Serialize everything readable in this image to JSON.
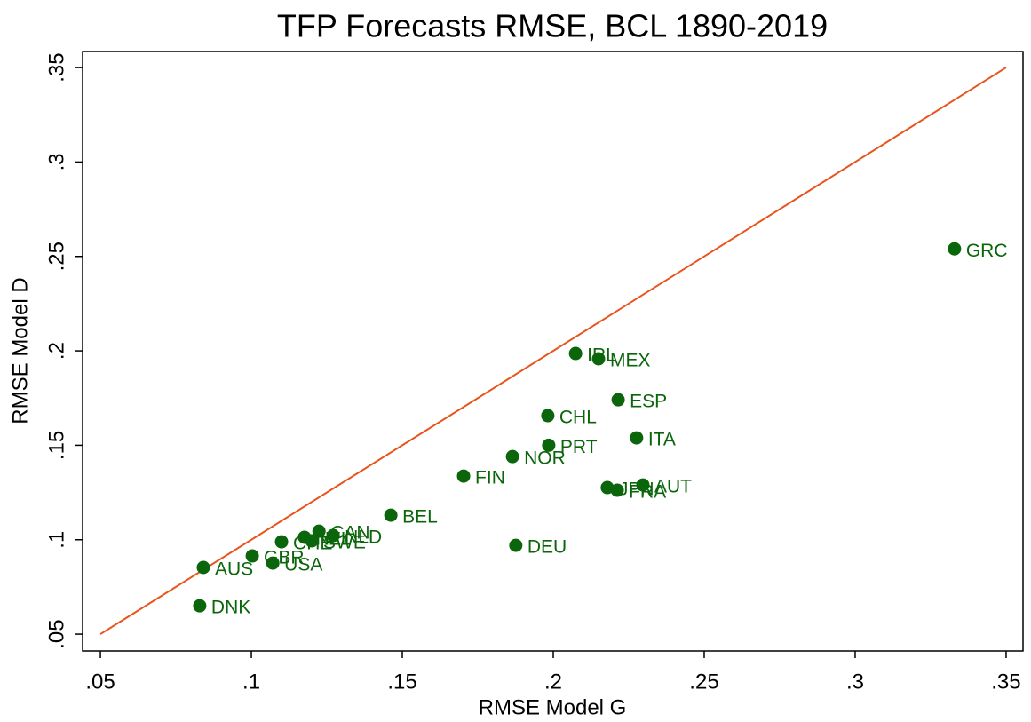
{
  "chart_data": {
    "type": "scatter",
    "title": "TFP Forecasts RMSE, BCL 1890-2019",
    "x_label": "RMSE Model G",
    "y_label": "RMSE Model D",
    "labels": [
      "DNK",
      "AUS",
      "GBR",
      "USA",
      "CHE",
      "NZL",
      "SWE",
      "CAN",
      "NLD",
      "BEL",
      "FIN",
      "NOR",
      "PRT",
      "CHL",
      "IRL",
      "MEX",
      "ESP",
      "ITA",
      "JPN",
      "FRA",
      "AUT",
      "DEU",
      "GRC"
    ],
    "x": [
      0.0829,
      0.0841,
      0.1003,
      0.1071,
      0.11,
      0.1176,
      0.12,
      0.1224,
      0.1271,
      0.1462,
      0.1703,
      0.1865,
      0.1985,
      0.1982,
      0.2074,
      0.215,
      0.2215,
      0.2276,
      0.2179,
      0.2212,
      0.2297,
      0.1876,
      0.3329
    ],
    "y": [
      0.065,
      0.0853,
      0.0914,
      0.0876,
      0.0989,
      0.1013,
      0.0994,
      0.1045,
      0.1022,
      0.113,
      0.1337,
      0.144,
      0.15,
      0.1657,
      0.1986,
      0.1958,
      0.1741,
      0.1539,
      0.1276,
      0.1262,
      0.129,
      0.097,
      0.254
    ],
    "color": "#0b660b",
    "reference_line": {
      "x": [
        0.05,
        0.35
      ],
      "y": [
        0.05,
        0.35
      ],
      "color": "#e8541c"
    },
    "xlim": [
      0.0441,
      0.3556
    ],
    "ylim": [
      0.0411,
      0.3585
    ],
    "xticks": [
      {
        "value": 0.05,
        "label": ".05"
      },
      {
        "value": 0.1,
        "label": ".1"
      },
      {
        "value": 0.15,
        "label": ".15"
      },
      {
        "value": 0.2,
        "label": ".2"
      },
      {
        "value": 0.25,
        "label": ".25"
      },
      {
        "value": 0.3,
        "label": ".3"
      },
      {
        "value": 0.35,
        "label": ".35"
      }
    ],
    "yticks": [
      {
        "value": 0.05,
        "label": ".05"
      },
      {
        "value": 0.1,
        "label": ".1"
      },
      {
        "value": 0.15,
        "label": ".15"
      },
      {
        "value": 0.2,
        "label": ".2"
      },
      {
        "value": 0.25,
        "label": ".25"
      },
      {
        "value": 0.3,
        "label": ".3"
      },
      {
        "value": 0.35,
        "label": ".35"
      }
    ]
  }
}
